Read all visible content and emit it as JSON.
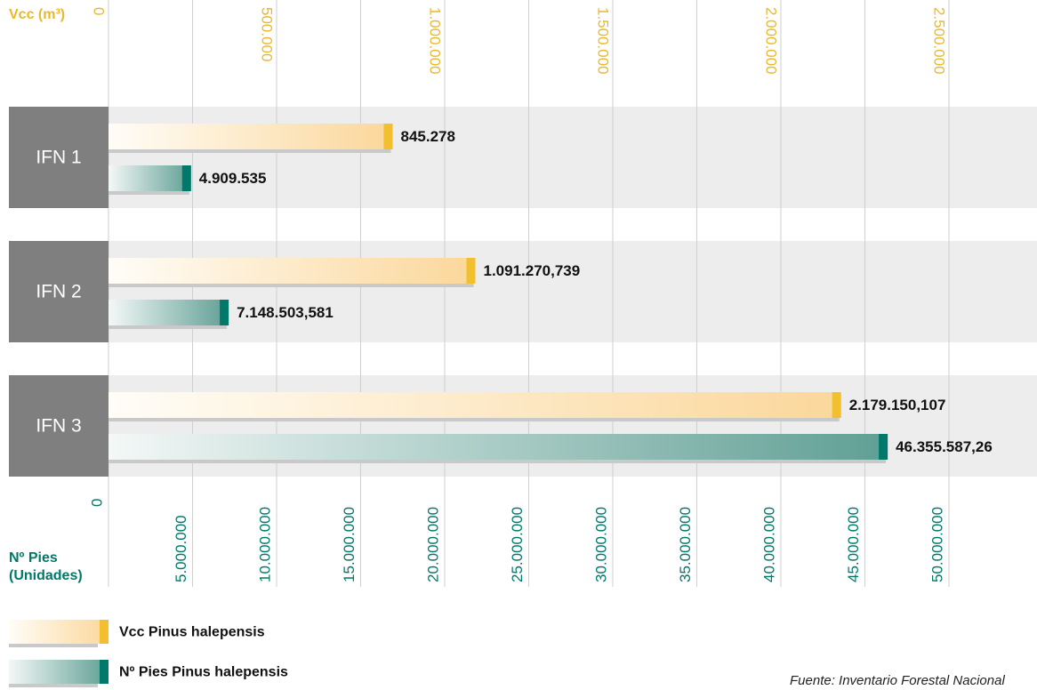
{
  "chart_data": {
    "type": "bar",
    "categories": [
      "IFN 1",
      "IFN 2",
      "IFN 3"
    ],
    "x2_label": "Vcc (m³)",
    "x_label": [
      "Nº Pies",
      "(Unidades)"
    ],
    "series": [
      {
        "name": "Vcc Pinus halepensis",
        "color": "#f2c02e",
        "axis": "x2",
        "values": [
          845278,
          1091270.739,
          2179150.107
        ],
        "value_labels": [
          "845.278",
          "1.091.270,739",
          "2.179.150,107"
        ]
      },
      {
        "name": "Nº Pies Pinus halepensis",
        "color": "#00796b",
        "values": [
          4909535,
          7148503.581,
          46355587.26
        ],
        "value_labels": [
          "4.909.535",
          "7.148.503,581",
          "46.355.587,26"
        ]
      }
    ],
    "x2lim": [
      0,
      2762000
    ],
    "x2ticks": [
      0,
      {
        "value": 500000,
        "label": "500.000"
      },
      {
        "value": 1000000,
        "label": "1.000.000"
      },
      {
        "value": 1500000,
        "label": "1.500.000"
      },
      {
        "value": 2000000,
        "label": "2.000.000"
      },
      {
        "value": 2500000,
        "label": "2.500.000"
      }
    ],
    "xlim": [
      0,
      55240000
    ],
    "xticks": [
      0,
      {
        "value": 5000000,
        "label": "5.000.000"
      },
      {
        "value": 10000000,
        "label": "10.000.000"
      },
      {
        "value": 15000000,
        "label": "15.000.000"
      },
      {
        "value": 20000000,
        "label": "20.000.000"
      },
      {
        "value": 25000000,
        "label": "25.000.000"
      },
      {
        "value": 30000000,
        "label": "30.000.000"
      },
      {
        "value": 35000000,
        "label": "35.000.000"
      },
      {
        "value": 40000000,
        "label": "40.000.000"
      },
      {
        "value": 45000000,
        "label": "45.000.000"
      },
      {
        "value": 50000000,
        "label": "50.000.000"
      }
    ],
    "grid": true,
    "source": "Fuente: Inventario Forestal Nacional"
  }
}
